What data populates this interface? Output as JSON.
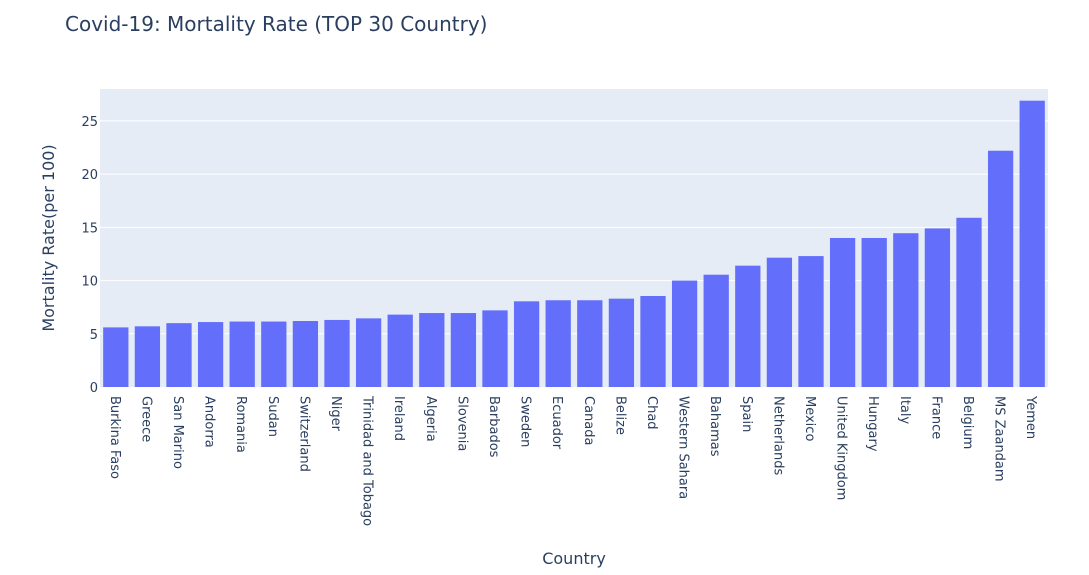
{
  "chart_data": {
    "type": "bar",
    "title": "Covid-19: Mortality Rate (TOP 30 Country)",
    "xlabel": "Country",
    "ylabel": "Mortality Rate(per 100)",
    "ylim": [
      0,
      28
    ],
    "yticks": [
      0,
      5,
      10,
      15,
      20,
      25
    ],
    "grid": true,
    "colors": {
      "bar": "#636efa",
      "plot_bg": "#e5ecf6",
      "grid": "#ffffff",
      "text": "#2a3f5f"
    },
    "categories": [
      "Burkina Faso",
      "Greece",
      "San Marino",
      "Andorra",
      "Romania",
      "Sudan",
      "Switzerland",
      "Niger",
      "Trinidad and Tobago",
      "Ireland",
      "Algeria",
      "Slovenia",
      "Barbados",
      "Sweden",
      "Ecuador",
      "Canada",
      "Belize",
      "Chad",
      "Western Sahara",
      "Bahamas",
      "Spain",
      "Netherlands",
      "Mexico",
      "United Kingdom",
      "Hungary",
      "Italy",
      "France",
      "Belgium",
      "MS Zaandam",
      "Yemen"
    ],
    "values": [
      5.6,
      5.7,
      6.0,
      6.1,
      6.15,
      6.15,
      6.2,
      6.3,
      6.45,
      6.8,
      6.95,
      6.95,
      7.2,
      8.05,
      8.15,
      8.15,
      8.3,
      8.55,
      10.0,
      10.55,
      11.4,
      12.15,
      12.3,
      14.0,
      14.0,
      14.45,
      14.9,
      15.9,
      22.2,
      26.9
    ]
  }
}
